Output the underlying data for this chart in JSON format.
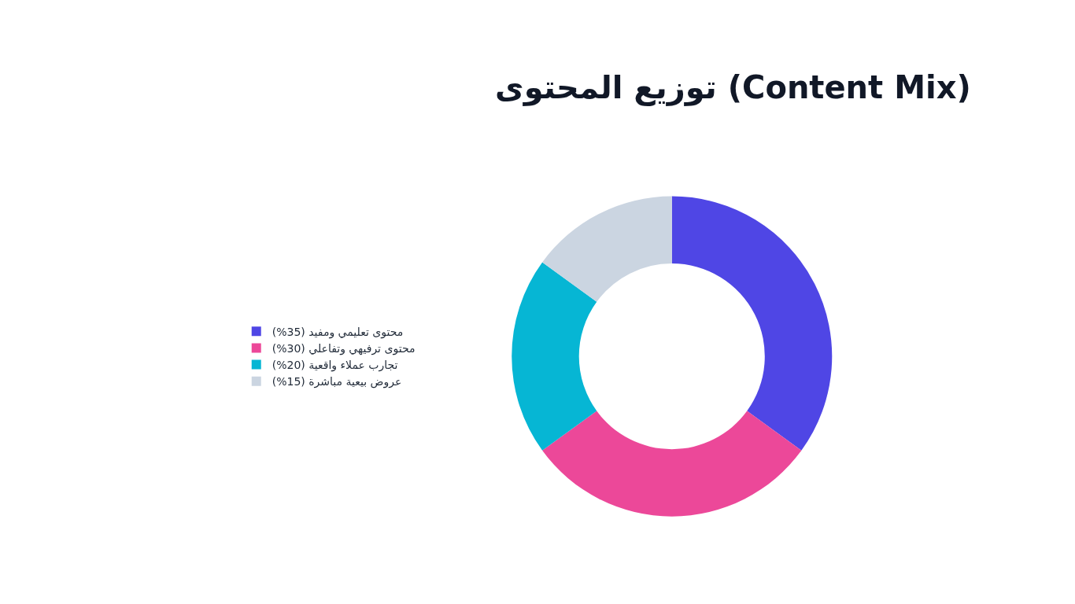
{
  "chart_data": {
    "type": "donut",
    "title": "توزيع المحتوى (Content Mix)",
    "categories": [
      "محتوى تعليمي ومفيد (35%)",
      "محتوى ترفيهي وتفاعلي (30%)",
      "تجارب عملاء واقعية (20%)",
      "عروض بيعية مباشرة (15%)"
    ],
    "values": [
      35,
      30,
      20,
      15
    ],
    "colors": [
      "#4f46e5",
      "#ec4899",
      "#06b6d4",
      "#cbd5e1"
    ],
    "legend": "left"
  }
}
